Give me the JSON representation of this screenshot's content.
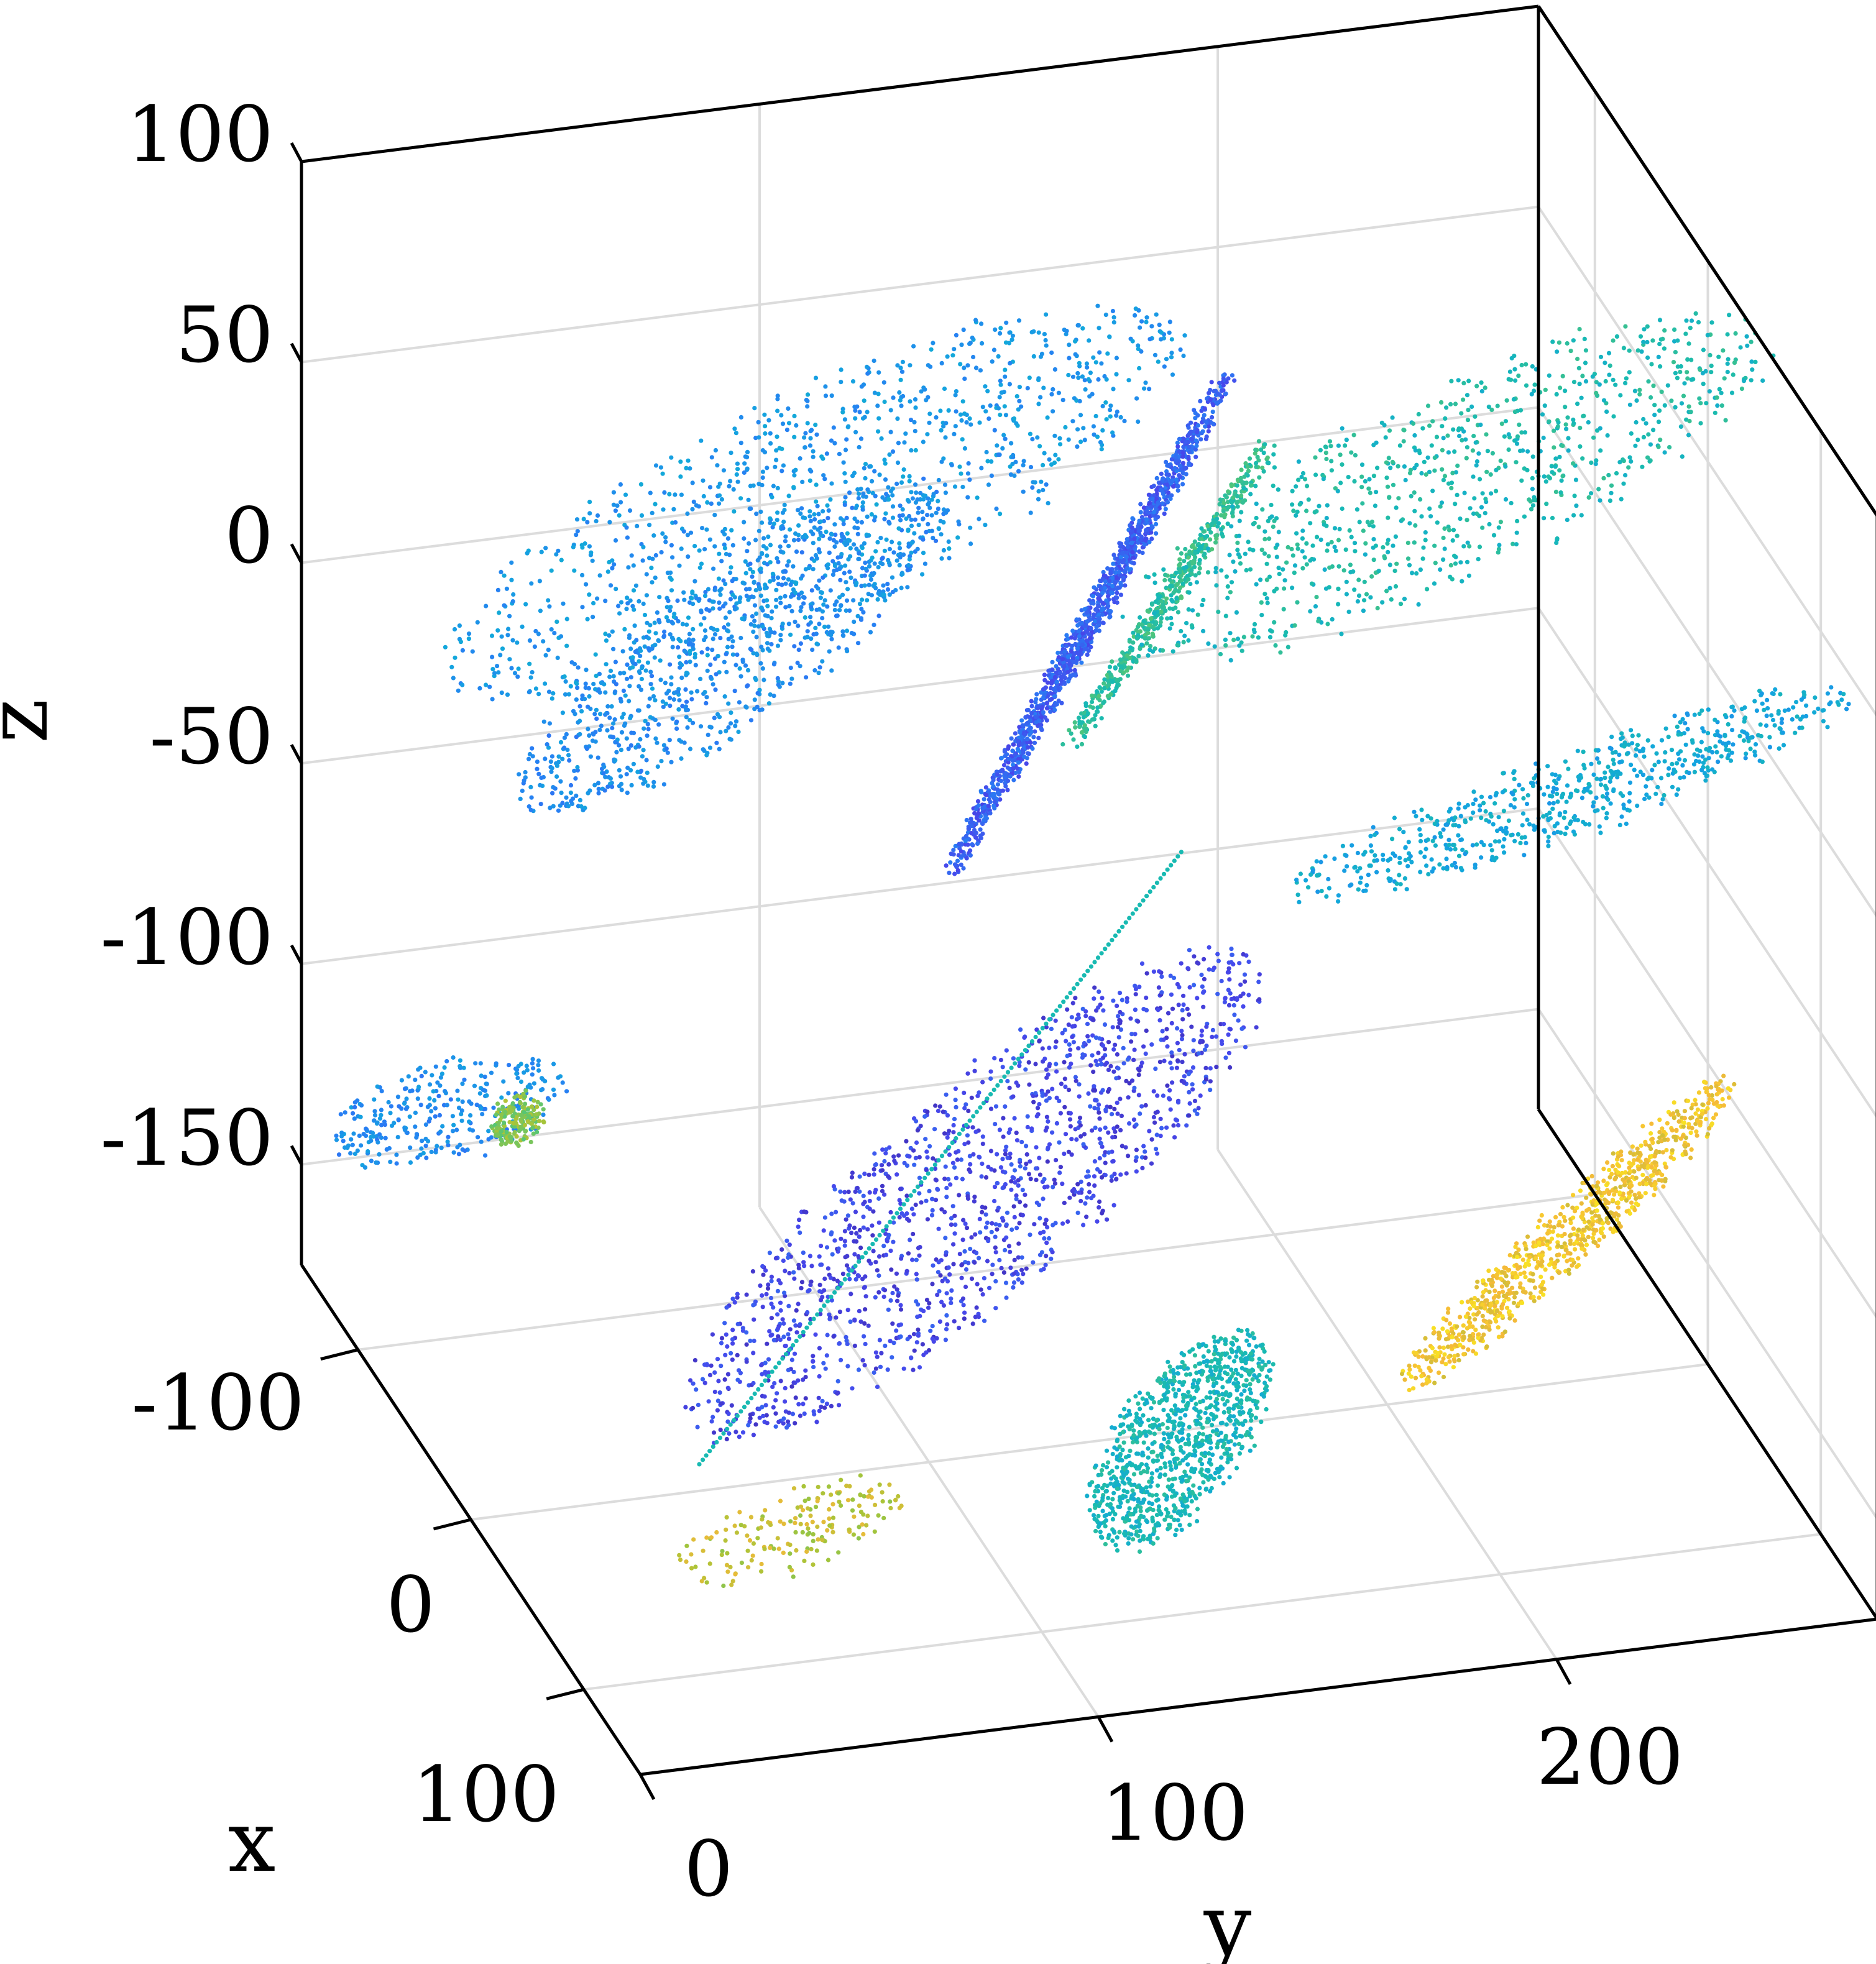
{
  "chart_data": {
    "type": "scatter",
    "projection": "3d",
    "title": "",
    "xlabel": "x",
    "ylabel": "y",
    "zlabel": "z",
    "xlim": [
      -150,
      150
    ],
    "ylim": [
      0,
      270
    ],
    "zlim": [
      -175,
      100
    ],
    "xticks": [
      -100,
      0,
      100
    ],
    "yticks": [
      0,
      100,
      200
    ],
    "zticks": [
      100,
      50,
      0,
      -50,
      -100,
      -150
    ],
    "xtick_labels": [
      "-100",
      "0",
      "100"
    ],
    "ytick_labels": [
      "0",
      "100",
      "200"
    ],
    "ztick_labels": [
      "100",
      "50",
      "0",
      "-50",
      "-100",
      "-150"
    ],
    "grid": true,
    "colormap": "parula",
    "clusters": [
      {
        "cx": -10,
        "cy": 60,
        "cz": 30,
        "ru": 55,
        "rv": 30,
        "n": 900,
        "c": 0.3
      },
      {
        "cx": -60,
        "cy": 90,
        "cz": 40,
        "ru": 80,
        "rv": 35,
        "n": 1100,
        "c": 0.33
      },
      {
        "cx": -20,
        "cy": 140,
        "cz": 20,
        "ru": 75,
        "rv": 45,
        "n": 1300,
        "c": 0.18
      },
      {
        "cx": -30,
        "cy": 160,
        "cz": 20,
        "ru": 70,
        "rv": 8,
        "n": 500,
        "c": 0.55
      },
      {
        "cx": -70,
        "cy": 230,
        "cz": 20,
        "ru": 70,
        "rv": 30,
        "n": 900,
        "c": 0.5
      },
      {
        "cx": 40,
        "cy": 230,
        "cz": -10,
        "ru": 60,
        "rv": 12,
        "n": 650,
        "c": 0.4
      },
      {
        "cx": -60,
        "cy": 10,
        "cz": -100,
        "ru": 35,
        "rv": 12,
        "n": 300,
        "c": 0.3
      },
      {
        "cx": -40,
        "cy": 20,
        "cz": -95,
        "ru": 30,
        "rv": 5,
        "n": 180,
        "c": 0.7
      },
      {
        "cx": 0,
        "cy": 110,
        "cz": -110,
        "ru": 75,
        "rv": 45,
        "n": 1500,
        "c": 0.12
      },
      {
        "cx": 60,
        "cy": 140,
        "cz": -150,
        "ru": 80,
        "rv": 25,
        "n": 1000,
        "c": 0.48
      },
      {
        "cx": 40,
        "cy": 230,
        "cz": -120,
        "ru": 65,
        "rv": 15,
        "n": 900,
        "c": 0.88
      },
      {
        "cx": 40,
        "cy": 60,
        "cz": -170,
        "ru": 25,
        "rv": 10,
        "n": 180,
        "c": 0.78
      }
    ],
    "lines": [
      {
        "from": [
          40,
          40,
          -150
        ],
        "to": [
          -20,
          160,
          -40
        ],
        "n": 140,
        "c": 0.5
      }
    ]
  }
}
